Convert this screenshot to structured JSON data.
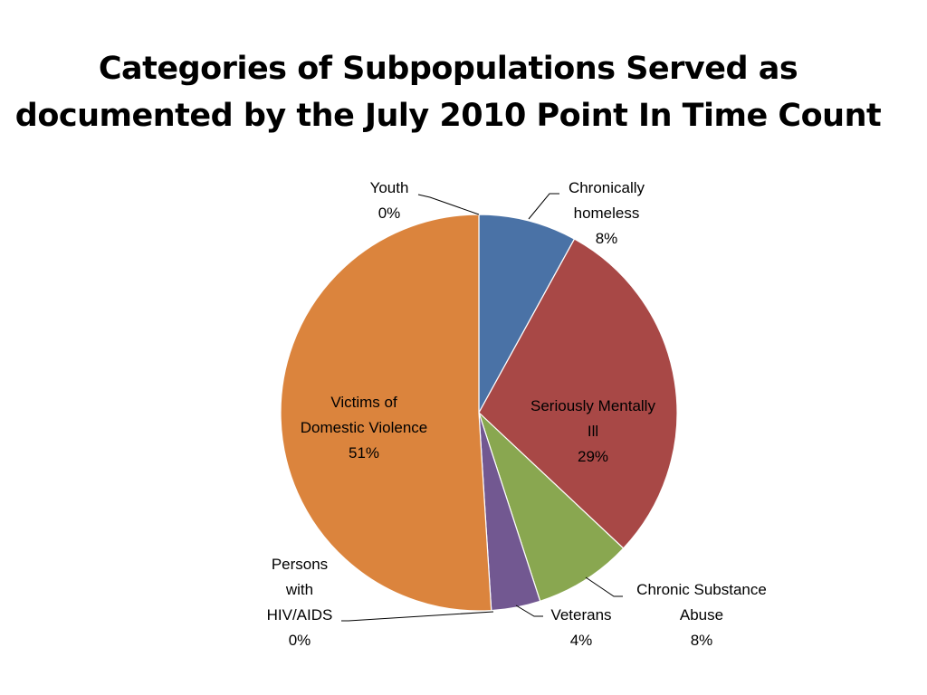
{
  "chart_data": {
    "type": "pie",
    "title_lines": [
      "Categories of Subpopulations Served as",
      "documented by the July 2010 Point In Time Count"
    ],
    "slices": [
      {
        "label_lines": [
          "Chronically",
          "homeless"
        ],
        "value": 8,
        "pct_label": "8%",
        "color": "#4A72A6"
      },
      {
        "label_lines": [
          "Seriously Mentally",
          "Ill"
        ],
        "value": 29,
        "pct_label": "29%",
        "color": "#A84846"
      },
      {
        "label_lines": [
          "Chronic Substance",
          "Abuse"
        ],
        "value": 8,
        "pct_label": "8%",
        "color": "#89A750"
      },
      {
        "label_lines": [
          "Veterans"
        ],
        "value": 4,
        "pct_label": "4%",
        "color": "#725891"
      },
      {
        "label_lines": [
          "Persons",
          "with",
          "HIV/AIDS"
        ],
        "value": 0,
        "pct_label": "0%",
        "color": "#4198AF"
      },
      {
        "label_lines": [
          "Victims of",
          "Domestic Violence"
        ],
        "value": 51,
        "pct_label": "51%",
        "color": "#DB843D"
      },
      {
        "label_lines": [
          "Youth"
        ],
        "value": 0,
        "pct_label": "0%",
        "color": "#93A9CF"
      }
    ]
  }
}
